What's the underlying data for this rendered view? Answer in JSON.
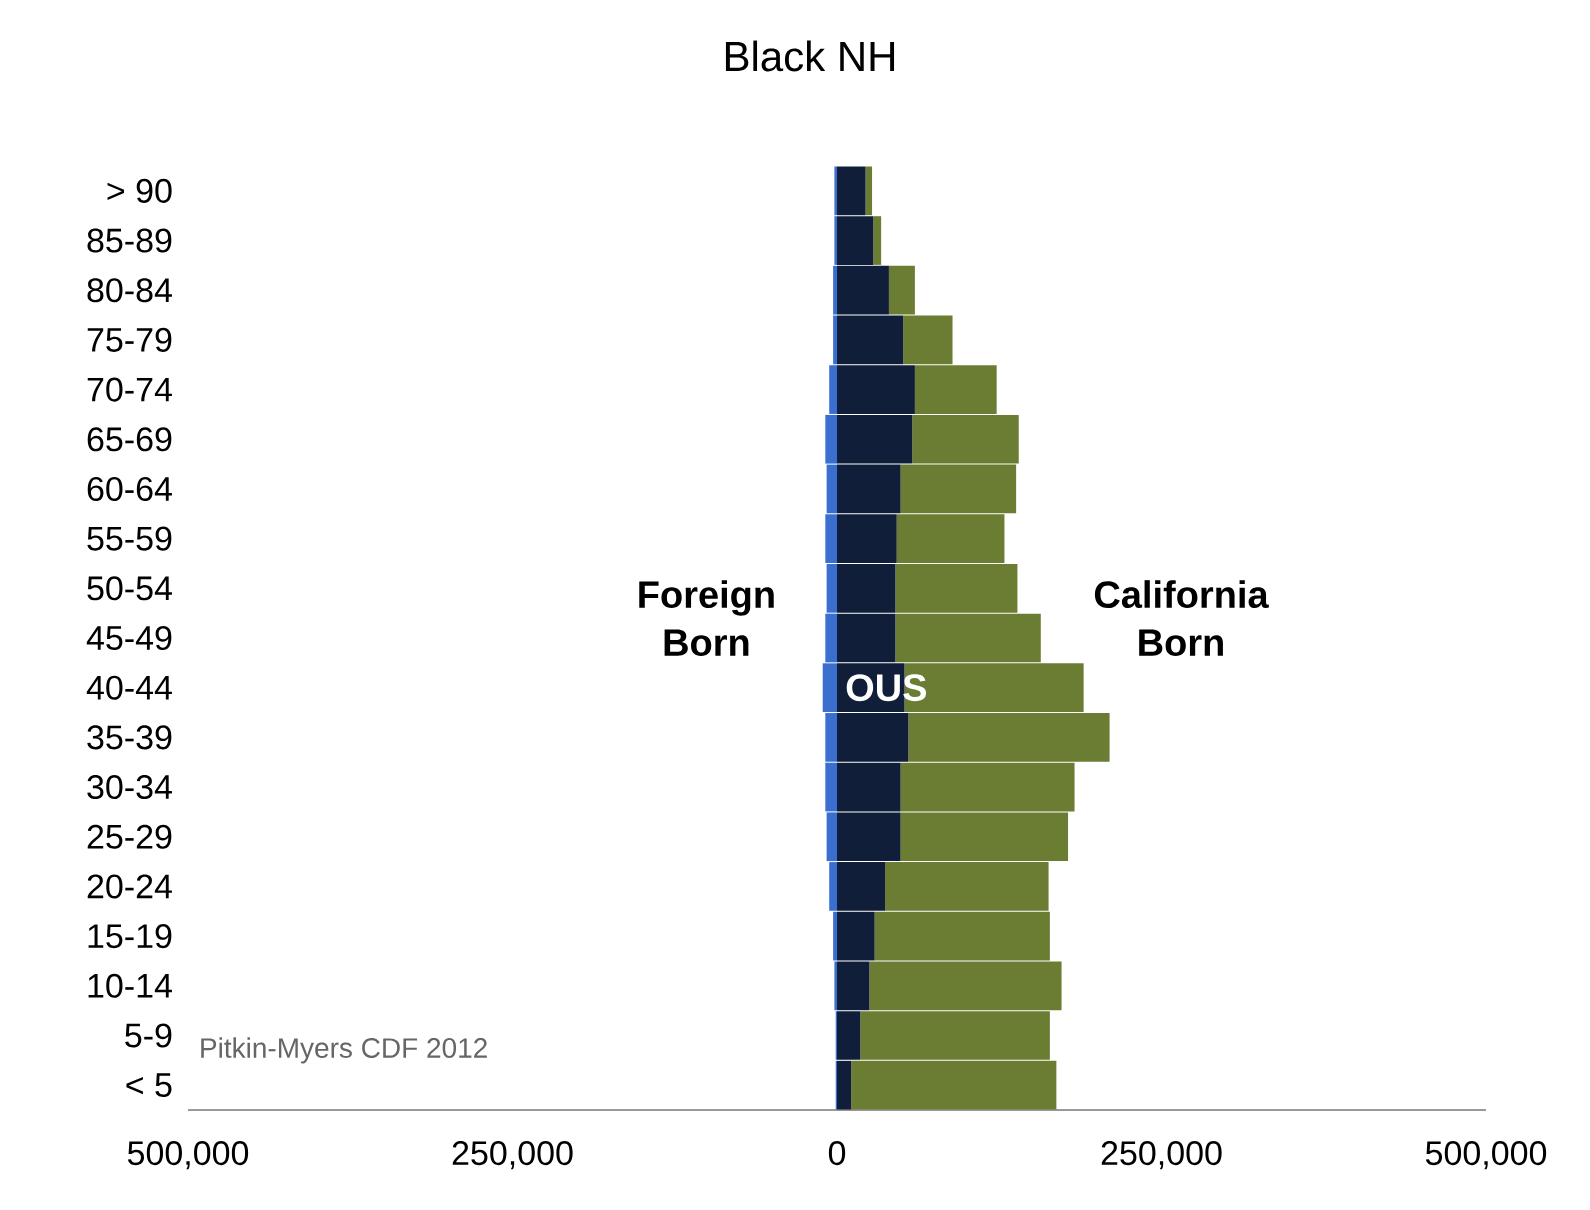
{
  "chart_data": {
    "type": "bar",
    "orientation": "horizontal",
    "stacked": true,
    "title": "Black NH",
    "categories": [
      "> 90",
      "85-89",
      "80-84",
      "75-79",
      "70-74",
      "65-69",
      "60-64",
      "55-59",
      "50-54",
      "45-49",
      "40-44",
      "35-39",
      "30-34",
      "25-29",
      "20-24",
      "15-19",
      "10-14",
      "5-9",
      "< 5"
    ],
    "series": [
      {
        "name": "Foreign Born",
        "color": "#3a6fd0",
        "values": [
          -2000,
          -2000,
          -3000,
          -3000,
          -6000,
          -9000,
          -8000,
          -9000,
          -8000,
          -9000,
          -11000,
          -9000,
          -9000,
          -8000,
          -6000,
          -3000,
          -2000,
          -1000,
          -1000
        ]
      },
      {
        "name": "OUS",
        "color": "#101e3a",
        "values": [
          22000,
          28000,
          40000,
          51000,
          60000,
          58000,
          49000,
          46000,
          45000,
          45000,
          52000,
          55000,
          49000,
          49000,
          37000,
          29000,
          25000,
          18000,
          11000
        ]
      },
      {
        "name": "California Born",
        "color": "#6b7d32",
        "values": [
          5000,
          6000,
          20000,
          38000,
          63000,
          82000,
          89000,
          83000,
          94000,
          112000,
          138000,
          155000,
          134000,
          129000,
          126000,
          135000,
          148000,
          146000,
          158000
        ]
      }
    ],
    "xlim": [
      -500000,
      500000
    ],
    "xticks": [
      {
        "value": -500000,
        "label": "500,000"
      },
      {
        "value": -250000,
        "label": "250,000"
      },
      0,
      {
        "value": 250000,
        "label": "250,000"
      },
      {
        "value": 500000,
        "label": "500,000"
      }
    ],
    "legend": false,
    "annotations": [
      "Pitkin-Myers CDF 2012"
    ]
  }
}
